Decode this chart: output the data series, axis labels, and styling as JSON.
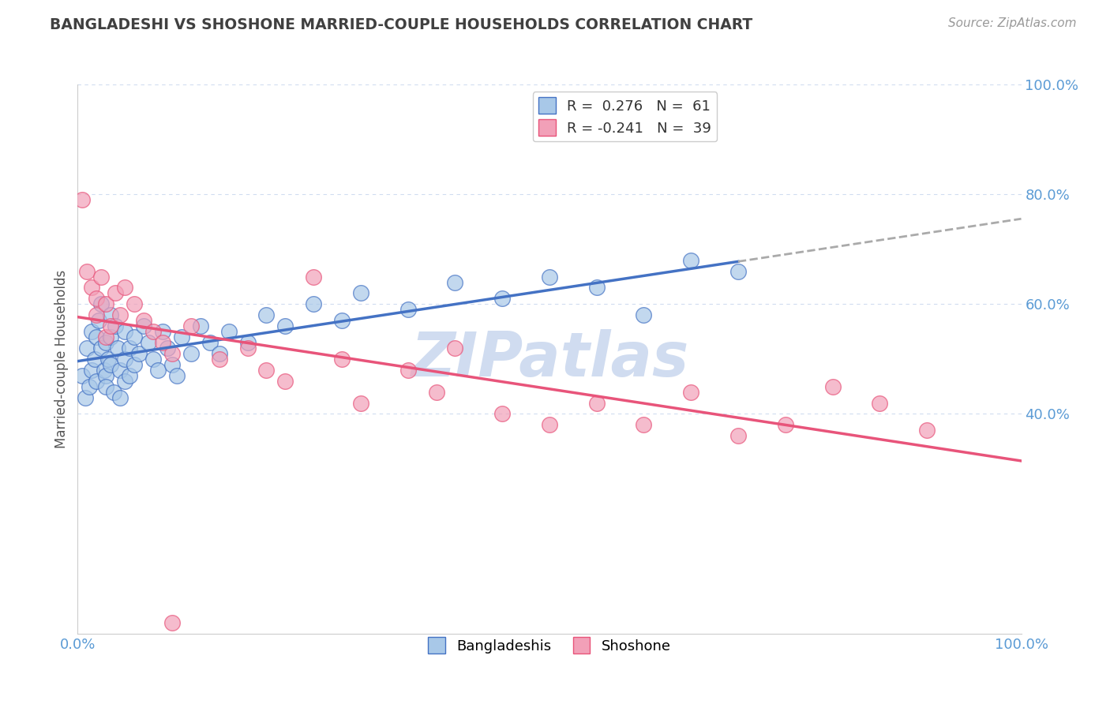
{
  "title": "BANGLADESHI VS SHOSHONE MARRIED-COUPLE HOUSEHOLDS CORRELATION CHART",
  "source": "Source: ZipAtlas.com",
  "ylabel": "Married-couple Households",
  "legend_label1": "Bangladeshis",
  "legend_label2": "Shoshone",
  "r1": 0.276,
  "n1": 61,
  "r2": -0.241,
  "n2": 39,
  "color_blue": "#A8C8E8",
  "color_pink": "#F2A0B8",
  "color_blue_line": "#4472C4",
  "color_pink_line": "#E8547A",
  "color_dashed": "#AAAAAA",
  "title_color": "#404040",
  "axis_label_color": "#5B9BD5",
  "watermark_color": "#D0DCF0",
  "background_color": "#FFFFFF",
  "grid_color": "#D0DCF0",
  "blue_dots": [
    [
      0.5,
      47
    ],
    [
      0.8,
      43
    ],
    [
      1.0,
      52
    ],
    [
      1.2,
      45
    ],
    [
      1.5,
      55
    ],
    [
      1.5,
      48
    ],
    [
      1.8,
      50
    ],
    [
      2.0,
      54
    ],
    [
      2.0,
      46
    ],
    [
      2.2,
      57
    ],
    [
      2.5,
      60
    ],
    [
      2.5,
      52
    ],
    [
      2.8,
      48
    ],
    [
      3.0,
      53
    ],
    [
      3.0,
      47
    ],
    [
      3.0,
      45
    ],
    [
      3.2,
      50
    ],
    [
      3.5,
      58
    ],
    [
      3.5,
      54
    ],
    [
      3.5,
      49
    ],
    [
      3.8,
      44
    ],
    [
      4.0,
      56
    ],
    [
      4.2,
      52
    ],
    [
      4.5,
      48
    ],
    [
      4.5,
      43
    ],
    [
      5.0,
      55
    ],
    [
      5.0,
      50
    ],
    [
      5.0,
      46
    ],
    [
      5.5,
      52
    ],
    [
      5.5,
      47
    ],
    [
      6.0,
      54
    ],
    [
      6.0,
      49
    ],
    [
      6.5,
      51
    ],
    [
      7.0,
      56
    ],
    [
      7.5,
      53
    ],
    [
      8.0,
      50
    ],
    [
      8.5,
      48
    ],
    [
      9.0,
      55
    ],
    [
      9.5,
      52
    ],
    [
      10.0,
      49
    ],
    [
      10.5,
      47
    ],
    [
      11.0,
      54
    ],
    [
      12.0,
      51
    ],
    [
      13.0,
      56
    ],
    [
      14.0,
      53
    ],
    [
      15.0,
      51
    ],
    [
      16.0,
      55
    ],
    [
      18.0,
      53
    ],
    [
      20.0,
      58
    ],
    [
      22.0,
      56
    ],
    [
      25.0,
      60
    ],
    [
      28.0,
      57
    ],
    [
      30.0,
      62
    ],
    [
      35.0,
      59
    ],
    [
      40.0,
      64
    ],
    [
      45.0,
      61
    ],
    [
      50.0,
      65
    ],
    [
      55.0,
      63
    ],
    [
      60.0,
      58
    ],
    [
      65.0,
      68
    ],
    [
      70.0,
      66
    ]
  ],
  "pink_dots": [
    [
      0.5,
      79
    ],
    [
      1.0,
      66
    ],
    [
      1.5,
      63
    ],
    [
      2.0,
      61
    ],
    [
      2.0,
      58
    ],
    [
      2.5,
      65
    ],
    [
      3.0,
      54
    ],
    [
      3.0,
      60
    ],
    [
      3.5,
      56
    ],
    [
      4.0,
      62
    ],
    [
      4.5,
      58
    ],
    [
      5.0,
      63
    ],
    [
      6.0,
      60
    ],
    [
      7.0,
      57
    ],
    [
      8.0,
      55
    ],
    [
      9.0,
      53
    ],
    [
      10.0,
      51
    ],
    [
      12.0,
      56
    ],
    [
      15.0,
      50
    ],
    [
      18.0,
      52
    ],
    [
      20.0,
      48
    ],
    [
      22.0,
      46
    ],
    [
      25.0,
      65
    ],
    [
      28.0,
      50
    ],
    [
      30.0,
      42
    ],
    [
      35.0,
      48
    ],
    [
      38.0,
      44
    ],
    [
      40.0,
      52
    ],
    [
      45.0,
      40
    ],
    [
      50.0,
      38
    ],
    [
      55.0,
      42
    ],
    [
      60.0,
      38
    ],
    [
      65.0,
      44
    ],
    [
      70.0,
      36
    ],
    [
      75.0,
      38
    ],
    [
      80.0,
      45
    ],
    [
      85.0,
      42
    ],
    [
      90.0,
      37
    ],
    [
      10.0,
      2
    ]
  ],
  "xlim": [
    0,
    100
  ],
  "ylim": [
    0,
    100
  ],
  "figsize": [
    14.06,
    8.92
  ],
  "dpi": 100,
  "blue_line_x": [
    0,
    70,
    100
  ],
  "blue_solid_end": 70,
  "pink_line_x0": 0,
  "pink_line_x1": 100
}
